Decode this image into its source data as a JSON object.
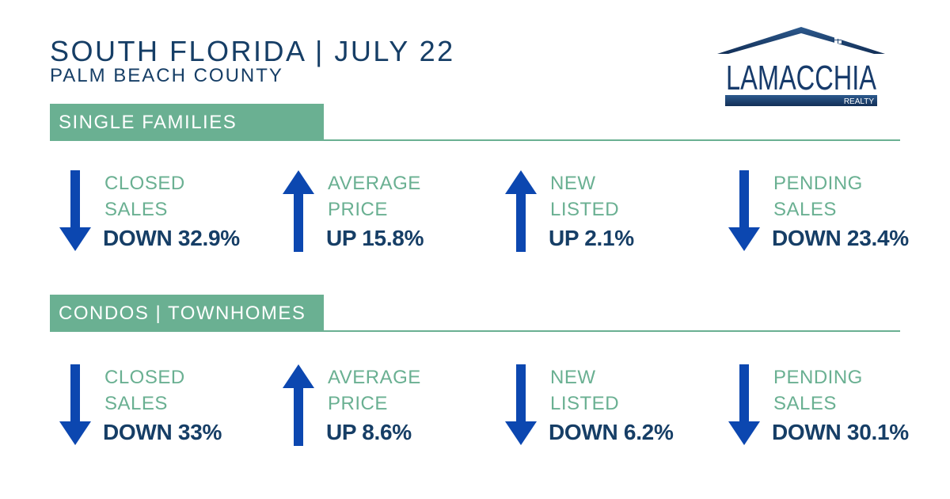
{
  "header": {
    "title": "SOUTH FLORIDA | JULY 22",
    "subtitle": "PALM BEACH COUNTY"
  },
  "logo": {
    "name": "LAMACCHIA",
    "tag": "REALTY",
    "color": "#173b6b"
  },
  "colors": {
    "accent_green": "#6ab092",
    "navy_text": "#163e66",
    "arrow_blue": "#0c47b0"
  },
  "sections": [
    {
      "title": "SINGLE FAMILIES",
      "stats": [
        {
          "label_line1": "CLOSED",
          "label_line2": "SALES",
          "value": "DOWN 32.9%",
          "direction": "down"
        },
        {
          "label_line1": "AVERAGE",
          "label_line2": "PRICE",
          "value": "UP 15.8%",
          "direction": "up"
        },
        {
          "label_line1": "NEW",
          "label_line2": "LISTED",
          "value": "UP 2.1%",
          "direction": "up"
        },
        {
          "label_line1": "PENDING",
          "label_line2": "SALES",
          "value": "DOWN 23.4%",
          "direction": "down"
        }
      ]
    },
    {
      "title": "CONDOS | TOWNHOMES",
      "stats": [
        {
          "label_line1": "CLOSED",
          "label_line2": "SALES",
          "value": "DOWN 33%",
          "direction": "down"
        },
        {
          "label_line1": "AVERAGE",
          "label_line2": "PRICE",
          "value": "UP 8.6%",
          "direction": "up"
        },
        {
          "label_line1": "NEW",
          "label_line2": "LISTED",
          "value": "DOWN 6.2%",
          "direction": "down"
        },
        {
          "label_line1": "PENDING",
          "label_line2": "SALES",
          "value": "DOWN 30.1%",
          "direction": "down"
        }
      ]
    }
  ]
}
